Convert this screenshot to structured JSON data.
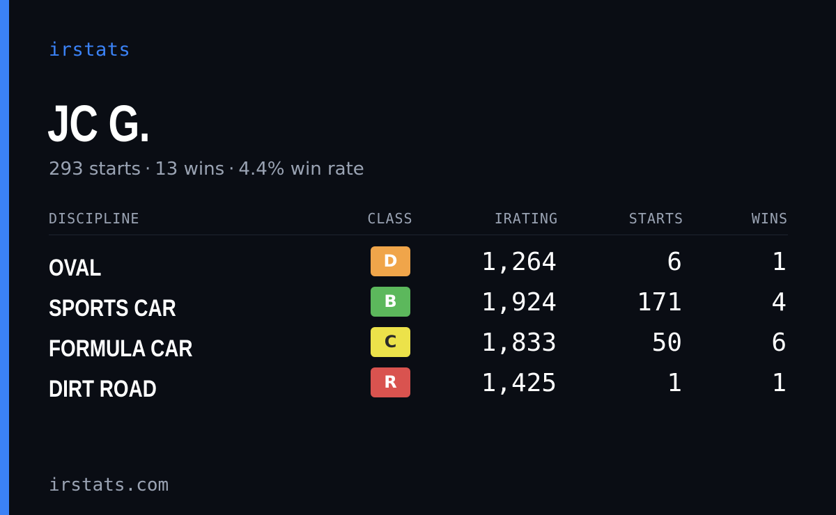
{
  "brand": "irstats",
  "driver": {
    "name": "JC G.",
    "starts": "293 starts",
    "wins": "13 wins",
    "win_rate": "4.4% win rate",
    "separator": "·"
  },
  "table": {
    "headers": {
      "discipline": "DISCIPLINE",
      "class": "CLASS",
      "irating": "IRATING",
      "starts": "STARTS",
      "wins": "WINS"
    },
    "rows": [
      {
        "discipline": "OVAL",
        "class": "D",
        "class_color": "#f0a54a",
        "class_text_color": "#ffffff",
        "irating": "1,264",
        "starts": "6",
        "wins": "1"
      },
      {
        "discipline": "SPORTS CAR",
        "class": "B",
        "class_color": "#5cb85c",
        "class_text_color": "#ffffff",
        "irating": "1,924",
        "starts": "171",
        "wins": "4"
      },
      {
        "discipline": "FORMULA CAR",
        "class": "C",
        "class_color": "#ece24a",
        "class_text_color": "#2a2a2a",
        "irating": "1,833",
        "starts": "50",
        "wins": "6"
      },
      {
        "discipline": "DIRT ROAD",
        "class": "R",
        "class_color": "#d9534f",
        "class_text_color": "#ffffff",
        "irating": "1,425",
        "starts": "1",
        "wins": "1"
      }
    ]
  },
  "footer": "irstats.com",
  "colors": {
    "background": "#0a0d14",
    "accent": "#3b82f6",
    "muted": "#9aa3b3"
  }
}
